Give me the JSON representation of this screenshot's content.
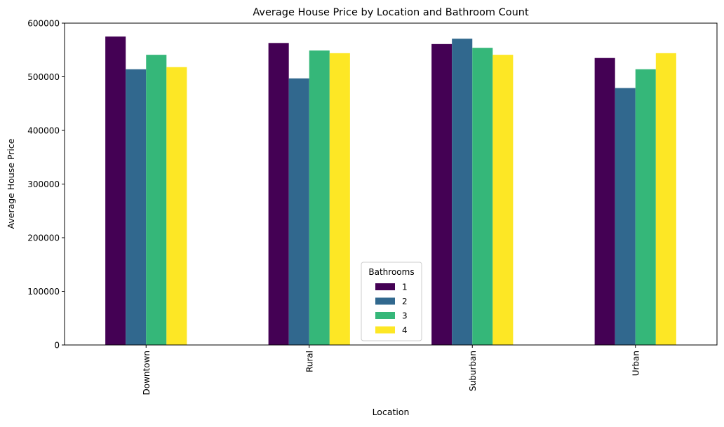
{
  "chart_data": {
    "type": "bar",
    "title": "Average House Price by Location and Bathroom Count",
    "xlabel": "Location",
    "ylabel": "Average House Price",
    "categories": [
      "Downtown",
      "Rural",
      "Suburban",
      "Urban"
    ],
    "series": [
      {
        "name": "1",
        "color": "#440154",
        "values": [
          575000,
          563000,
          561000,
          535000
        ]
      },
      {
        "name": "2",
        "color": "#31688e",
        "values": [
          514000,
          497000,
          571000,
          479000
        ]
      },
      {
        "name": "3",
        "color": "#35b779",
        "values": [
          541000,
          549000,
          554000,
          514000
        ]
      },
      {
        "name": "4",
        "color": "#fde725",
        "values": [
          518000,
          544000,
          541000,
          544000
        ]
      }
    ],
    "ylim": [
      0,
      600000
    ],
    "yticks": [
      "0",
      "100000",
      "200000",
      "300000",
      "400000",
      "500000",
      "600000"
    ],
    "grid": false,
    "legend": {
      "title": "Bathrooms",
      "placement": "lower-center"
    }
  }
}
